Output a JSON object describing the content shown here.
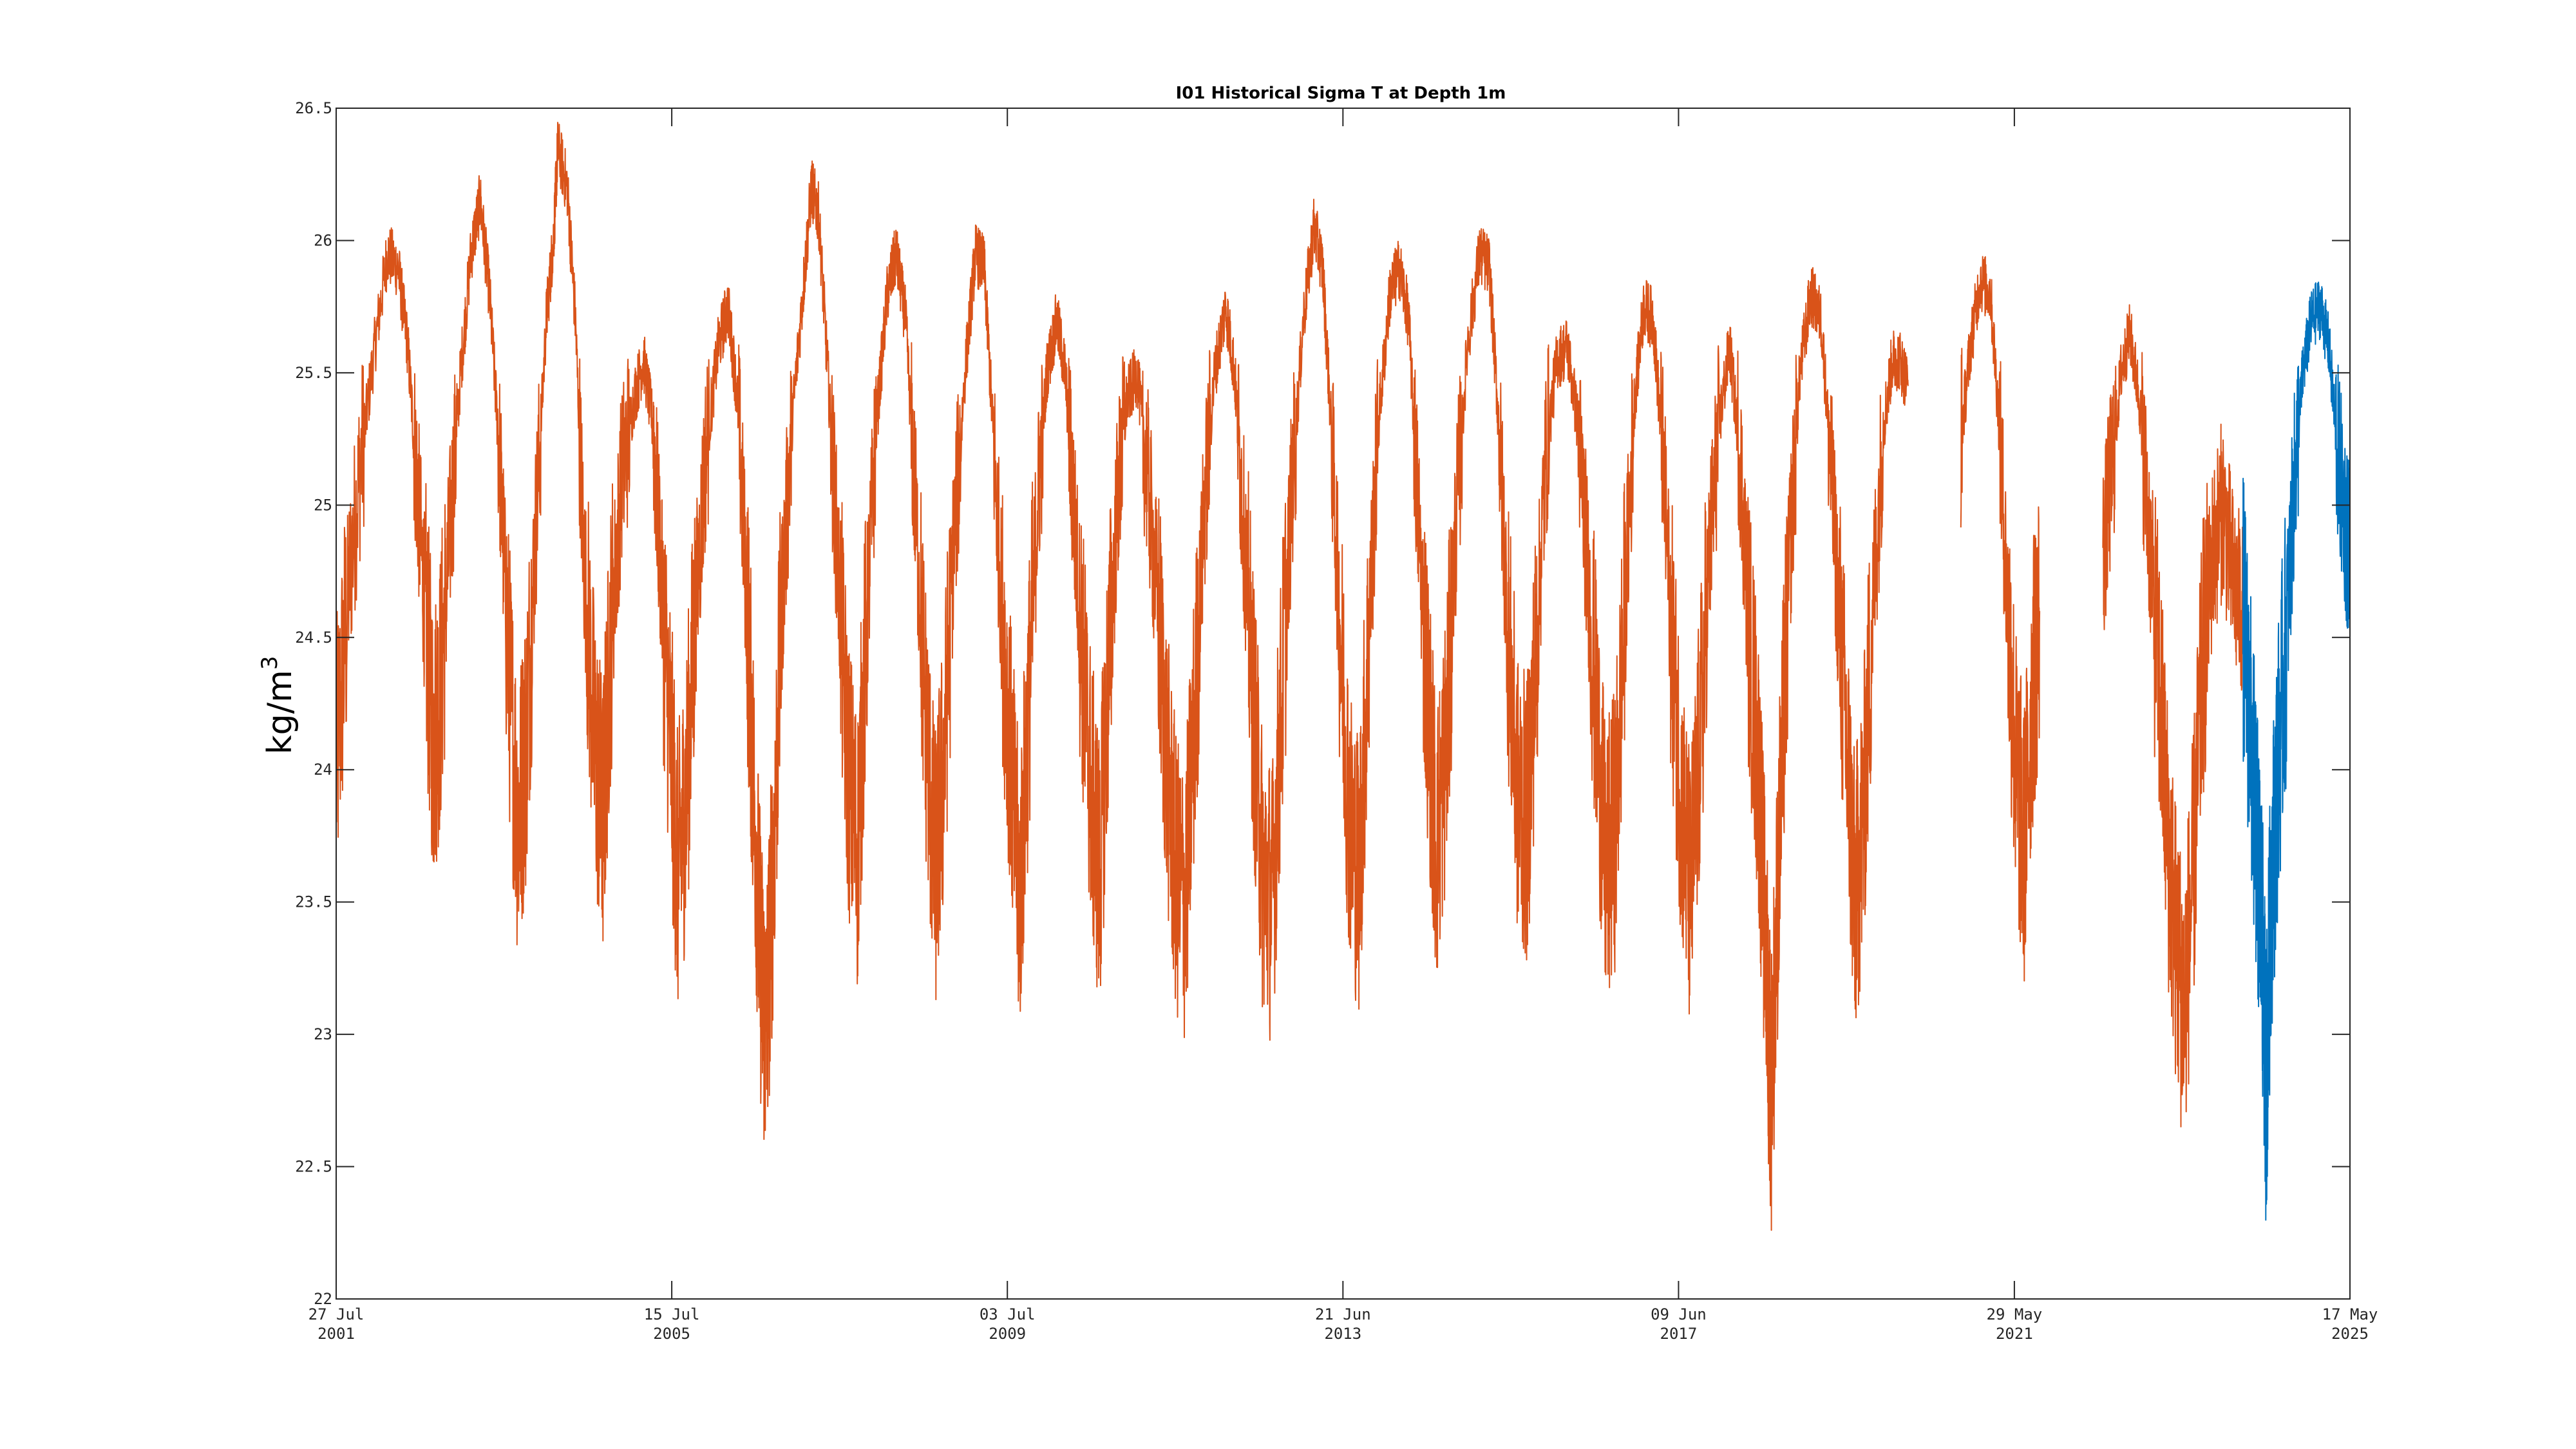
{
  "chart_data": {
    "type": "line",
    "title": "I01 Historical Sigma T at Depth 1m",
    "xlabel": "",
    "ylabel": "kg/m",
    "ylabel_superscript": "3",
    "xlim": [
      "2001-07-27",
      "2025-05-17"
    ],
    "ylim": [
      22,
      26.5
    ],
    "yticks": [
      "22",
      "22.5",
      "23",
      "23.5",
      "24",
      "24.5",
      "25",
      "25.5",
      "26",
      "26.5"
    ],
    "xticks": [
      {
        "date": "2001-07-27",
        "line1": "27 Jul",
        "line2": "2001"
      },
      {
        "date": "2005-07-15",
        "line1": "15 Jul",
        "line2": "2005"
      },
      {
        "date": "2009-07-03",
        "line1": "03 Jul",
        "line2": "2009"
      },
      {
        "date": "2013-06-21",
        "line1": "21 Jun",
        "line2": "2013"
      },
      {
        "date": "2017-06-09",
        "line1": "09 Jun",
        "line2": "2017"
      },
      {
        "date": "2021-05-29",
        "line1": "29 May",
        "line2": "2021"
      },
      {
        "date": "2025-05-17",
        "line1": "17 May",
        "line2": "2025"
      }
    ],
    "grid": false,
    "series": [
      {
        "color": "#D95319",
        "data": [
          [
            "2001-07-27",
            24.0
          ],
          [
            "2001-09-20",
            24.7
          ],
          [
            "2001-11-15",
            25.2
          ],
          [
            "2002-01-10",
            25.6
          ],
          [
            "2002-03-05",
            25.95
          ],
          [
            "2002-04-20",
            25.9
          ],
          [
            "2002-06-01",
            25.6
          ],
          [
            "2002-07-10",
            25.1
          ],
          [
            "2002-08-15",
            24.6
          ],
          [
            "2002-09-20",
            24.1
          ],
          [
            "2002-10-20",
            24.3
          ],
          [
            "2002-12-01",
            24.9
          ],
          [
            "2003-01-15",
            25.5
          ],
          [
            "2003-03-01",
            25.95
          ],
          [
            "2003-04-10",
            26.15
          ],
          [
            "2003-05-20",
            25.8
          ],
          [
            "2003-07-01",
            25.2
          ],
          [
            "2003-08-10",
            24.4
          ],
          [
            "2003-09-20",
            23.8
          ],
          [
            "2003-10-25",
            24.1
          ],
          [
            "2003-12-05",
            24.9
          ],
          [
            "2004-01-20",
            25.7
          ],
          [
            "2004-02-20",
            26.0
          ],
          [
            "2004-03-10",
            26.35
          ],
          [
            "2004-04-20",
            26.2
          ],
          [
            "2004-05-25",
            25.7
          ],
          [
            "2004-07-01",
            24.8
          ],
          [
            "2004-08-15",
            24.1
          ],
          [
            "2004-09-20",
            23.8
          ],
          [
            "2004-10-25",
            24.5
          ],
          [
            "2004-12-10",
            25.1
          ],
          [
            "2005-02-01",
            25.4
          ],
          [
            "2005-03-15",
            25.55
          ],
          [
            "2005-04-25",
            25.3
          ],
          [
            "2005-06-01",
            24.7
          ],
          [
            "2005-07-10",
            24.1
          ],
          [
            "2005-08-10",
            23.6
          ],
          [
            "2005-09-15",
            23.9
          ],
          [
            "2005-10-25",
            24.6
          ],
          [
            "2005-12-10",
            25.2
          ],
          [
            "2006-02-01",
            25.6
          ],
          [
            "2006-03-15",
            25.75
          ],
          [
            "2006-04-25",
            25.4
          ],
          [
            "2006-06-01",
            24.7
          ],
          [
            "2006-07-01",
            24.0
          ],
          [
            "2006-08-01",
            23.3
          ],
          [
            "2006-08-25",
            23.0
          ],
          [
            "2006-09-25",
            23.6
          ],
          [
            "2006-11-01",
            24.6
          ],
          [
            "2006-12-15",
            25.3
          ],
          [
            "2007-02-01",
            25.8
          ],
          [
            "2007-03-10",
            26.2
          ],
          [
            "2007-04-10",
            26.1
          ],
          [
            "2007-05-20",
            25.5
          ],
          [
            "2007-07-01",
            24.8
          ],
          [
            "2007-08-15",
            24.0
          ],
          [
            "2007-09-25",
            23.7
          ],
          [
            "2007-11-01",
            24.5
          ],
          [
            "2007-12-15",
            25.3
          ],
          [
            "2008-02-01",
            25.8
          ],
          [
            "2008-03-10",
            25.95
          ],
          [
            "2008-04-20",
            25.7
          ],
          [
            "2008-06-01",
            25.0
          ],
          [
            "2008-07-15",
            24.2
          ],
          [
            "2008-08-25",
            23.6
          ],
          [
            "2008-10-01",
            24.0
          ],
          [
            "2008-11-10",
            24.8
          ],
          [
            "2009-01-01",
            25.5
          ],
          [
            "2009-02-15",
            25.95
          ],
          [
            "2009-03-25",
            25.9
          ],
          [
            "2009-05-01",
            25.3
          ],
          [
            "2009-06-10",
            24.6
          ],
          [
            "2009-07-20",
            24.0
          ],
          [
            "2009-08-25",
            23.5
          ],
          [
            "2009-10-01",
            24.2
          ],
          [
            "2009-11-10",
            25.0
          ],
          [
            "2009-12-20",
            25.5
          ],
          [
            "2010-02-01",
            25.7
          ],
          [
            "2010-03-10",
            25.5
          ],
          [
            "2010-04-15",
            25.0
          ],
          [
            "2010-05-25",
            24.4
          ],
          [
            "2010-07-01",
            23.9
          ],
          [
            "2010-08-05",
            23.6
          ],
          [
            "2010-09-10",
            24.3
          ],
          [
            "2010-10-20",
            25.0
          ],
          [
            "2010-12-01",
            25.4
          ],
          [
            "2011-01-15",
            25.5
          ],
          [
            "2011-03-01",
            25.1
          ],
          [
            "2011-04-15",
            24.6
          ],
          [
            "2011-05-25",
            24.0
          ],
          [
            "2011-07-01",
            23.6
          ],
          [
            "2011-08-10",
            23.5
          ],
          [
            "2011-09-20",
            24.2
          ],
          [
            "2011-11-01",
            25.0
          ],
          [
            "2011-12-15",
            25.5
          ],
          [
            "2012-02-01",
            25.75
          ],
          [
            "2012-03-10",
            25.5
          ],
          [
            "2012-04-20",
            24.9
          ],
          [
            "2012-06-01",
            24.2
          ],
          [
            "2012-07-10",
            23.6
          ],
          [
            "2012-08-20",
            23.5
          ],
          [
            "2012-10-01",
            24.3
          ],
          [
            "2012-11-15",
            25.1
          ],
          [
            "2013-01-01",
            25.7
          ],
          [
            "2013-02-15",
            26.05
          ],
          [
            "2013-03-25",
            25.9
          ],
          [
            "2013-05-01",
            25.3
          ],
          [
            "2013-06-10",
            24.5
          ],
          [
            "2013-07-20",
            23.8
          ],
          [
            "2013-08-30",
            23.6
          ],
          [
            "2013-10-10",
            24.5
          ],
          [
            "2013-11-20",
            25.3
          ],
          [
            "2014-01-10",
            25.8
          ],
          [
            "2014-02-20",
            25.9
          ],
          [
            "2014-04-01",
            25.7
          ],
          [
            "2014-05-10",
            25.0
          ],
          [
            "2014-06-20",
            24.3
          ],
          [
            "2014-07-30",
            23.7
          ],
          [
            "2014-09-10",
            24.1
          ],
          [
            "2014-10-20",
            24.9
          ],
          [
            "2014-12-10",
            25.6
          ],
          [
            "2015-02-01",
            25.95
          ],
          [
            "2015-03-15",
            25.9
          ],
          [
            "2015-04-25",
            25.3
          ],
          [
            "2015-06-05",
            24.5
          ],
          [
            "2015-07-15",
            23.9
          ],
          [
            "2015-08-25",
            23.8
          ],
          [
            "2015-10-01",
            24.4
          ],
          [
            "2015-11-15",
            25.2
          ],
          [
            "2016-01-01",
            25.55
          ],
          [
            "2016-02-15",
            25.6
          ],
          [
            "2016-04-01",
            25.3
          ],
          [
            "2016-05-10",
            24.8
          ],
          [
            "2016-06-20",
            24.2
          ],
          [
            "2016-07-30",
            23.6
          ],
          [
            "2016-09-10",
            23.8
          ],
          [
            "2016-10-20",
            24.6
          ],
          [
            "2016-12-01",
            25.4
          ],
          [
            "2017-01-10",
            25.75
          ],
          [
            "2017-02-20",
            25.7
          ],
          [
            "2017-04-01",
            25.2
          ],
          [
            "2017-05-10",
            24.5
          ],
          [
            "2017-06-20",
            23.9
          ],
          [
            "2017-07-30",
            23.5
          ],
          [
            "2017-09-10",
            24.1
          ],
          [
            "2017-10-20",
            24.8
          ],
          [
            "2017-12-01",
            25.3
          ],
          [
            "2018-01-15",
            25.6
          ],
          [
            "2018-03-01",
            25.2
          ],
          [
            "2018-04-10",
            24.5
          ],
          [
            "2018-05-20",
            24.0
          ],
          [
            "2018-06-25",
            23.2
          ],
          [
            "2018-07-15",
            22.8
          ],
          [
            "2018-08-25",
            23.9
          ],
          [
            "2018-10-01",
            24.8
          ],
          [
            "2018-11-15",
            25.5
          ],
          [
            "2019-01-01",
            25.8
          ],
          [
            "2019-02-15",
            25.7
          ],
          [
            "2019-03-25",
            25.2
          ],
          [
            "2019-05-01",
            24.6
          ],
          [
            "2019-06-10",
            24.0
          ],
          [
            "2019-07-10",
            23.5
          ],
          [
            "2019-08-15",
            23.8
          ],
          [
            "2019-09-25",
            24.6
          ],
          [
            "2019-11-10",
            25.3
          ],
          [
            "2019-12-20",
            25.55
          ],
          [
            "2020-01-20",
            25.55
          ],
          [
            "2020-02-25",
            25.45
          ]
        ]
      },
      {
        "color": "#D95319",
        "data": [
          [
            "2020-10-10",
            25.25
          ],
          [
            "2020-11-20",
            25.6
          ],
          [
            "2021-01-01",
            25.85
          ],
          [
            "2021-02-15",
            25.8
          ],
          [
            "2021-03-25",
            25.3
          ],
          [
            "2021-05-01",
            24.6
          ],
          [
            "2021-06-05",
            24.0
          ],
          [
            "2021-07-10",
            23.7
          ],
          [
            "2021-08-15",
            24.3
          ],
          [
            "2021-09-15",
            24.6
          ]
        ]
      },
      {
        "color": "#D95319",
        "data": [
          [
            "2022-06-15",
            24.8
          ],
          [
            "2022-07-20",
            25.1
          ],
          [
            "2022-09-01",
            25.5
          ],
          [
            "2022-10-10",
            25.65
          ],
          [
            "2022-11-20",
            25.4
          ],
          [
            "2023-01-01",
            24.9
          ],
          [
            "2023-02-15",
            24.3
          ],
          [
            "2023-03-25",
            23.7
          ],
          [
            "2023-05-01",
            23.3
          ],
          [
            "2023-06-01",
            23.1
          ],
          [
            "2023-07-10",
            23.6
          ],
          [
            "2023-08-20",
            24.4
          ],
          [
            "2023-10-01",
            24.8
          ],
          [
            "2023-11-15",
            25.0
          ],
          [
            "2024-01-01",
            24.7
          ],
          [
            "2024-02-10",
            24.6
          ]
        ]
      },
      {
        "color": "#0072BD",
        "data": [
          [
            "2024-02-10",
            24.6
          ],
          [
            "2024-03-10",
            24.2
          ],
          [
            "2024-04-10",
            23.7
          ],
          [
            "2024-05-01",
            23.4
          ],
          [
            "2024-05-20",
            22.8
          ],
          [
            "2024-06-10",
            23.5
          ],
          [
            "2024-07-10",
            24.0
          ],
          [
            "2024-08-15",
            24.5
          ],
          [
            "2024-09-20",
            25.1
          ],
          [
            "2024-10-25",
            25.5
          ],
          [
            "2024-12-01",
            25.7
          ],
          [
            "2025-01-10",
            25.75
          ],
          [
            "2025-02-15",
            25.6
          ],
          [
            "2025-03-25",
            25.2
          ],
          [
            "2025-05-01",
            24.9
          ],
          [
            "2025-05-15",
            24.8
          ]
        ]
      }
    ]
  }
}
